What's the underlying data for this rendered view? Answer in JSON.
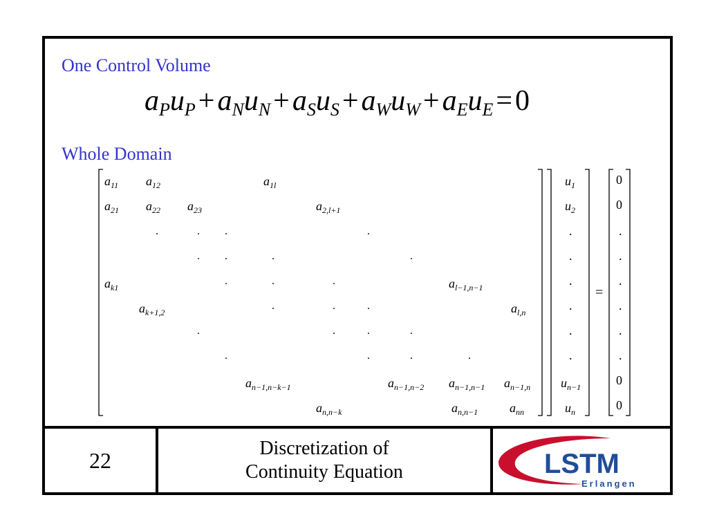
{
  "slide": {
    "heading1": "One Control Volume",
    "heading2": "Whole Domain",
    "equation_rhs": "0",
    "equation_terms": [
      {
        "coef": "a",
        "coef_sub": "P",
        "var": "u",
        "var_sub": "P"
      },
      {
        "coef": "a",
        "coef_sub": "N",
        "var": "u",
        "var_sub": "N"
      },
      {
        "coef": "a",
        "coef_sub": "S",
        "var": "u",
        "var_sub": "S"
      },
      {
        "coef": "a",
        "coef_sub": "W",
        "var": "u",
        "var_sub": "W"
      },
      {
        "coef": "a",
        "coef_sub": "E",
        "var": "u",
        "var_sub": "E"
      }
    ],
    "matrix_cells": [
      {
        "s": "11"
      },
      {
        "s": "12"
      },
      {
        "s": "1l"
      },
      {
        "s": "21"
      },
      {
        "s": "22"
      },
      {
        "s": "23"
      },
      {
        "s": "2,l+1"
      },
      {
        "s": "k1"
      },
      {
        "s": "l−1,n−1"
      },
      {
        "s": "k+1,2"
      },
      {
        "s": "l,n"
      },
      {
        "s": "n−1,n−k−1"
      },
      {
        "s": "n−1,n−2"
      },
      {
        "s": "n−1,n−1"
      },
      {
        "s": "n−1,n"
      },
      {
        "s": "n,n−k"
      },
      {
        "s": "n,n−1"
      },
      {
        "s": "nn"
      }
    ],
    "vector_u": [
      "1",
      "2",
      ".",
      ".",
      ".",
      ".",
      ".",
      ".",
      "n−1",
      "n"
    ],
    "vector_rhs": [
      "0",
      "0",
      ".",
      ".",
      ".",
      ".",
      ".",
      ".",
      "0",
      "0"
    ],
    "equals_sign": "="
  },
  "footer": {
    "page_number": "22",
    "title_line1": "Discretization of",
    "title_line2": "Continuity Equation",
    "logo_text": "LSTM",
    "logo_subtext": "Erlangen",
    "colors": {
      "logo_red": "#c8102e",
      "logo_blue": "#1f4e9a",
      "heading": "#3333cc"
    }
  }
}
